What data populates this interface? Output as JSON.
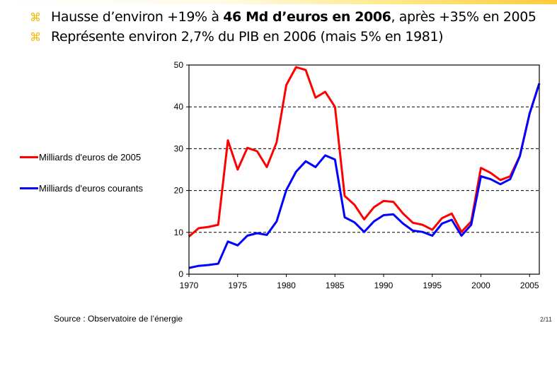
{
  "slide": {
    "bullets": [
      {
        "pre": "Hausse d’environ +19% à ",
        "bold": "46 Md d’euros en 2006",
        "post": ", après +35% en 2005"
      },
      {
        "pre": "Représente environ 2,7% du PIB en 2006 (mais 5% en 1981)",
        "bold": "",
        "post": ""
      }
    ],
    "bullet_icon": "command-key-icon",
    "bullet_symbol": "⌘",
    "source": "Source : Observatoire de l’énergie",
    "page": "2/11"
  },
  "chart_data": {
    "type": "line",
    "title": "",
    "xlabel": "",
    "ylabel": "",
    "xlim": [
      1970,
      2006
    ],
    "ylim": [
      0,
      50
    ],
    "xticks": [
      1970,
      1975,
      1980,
      1985,
      1990,
      1995,
      2000,
      2005
    ],
    "yticks": [
      0,
      10,
      20,
      30,
      40,
      50
    ],
    "grid": "horizontal dashed",
    "legend_position": "left",
    "x": [
      1970,
      1971,
      1972,
      1973,
      1974,
      1975,
      1976,
      1977,
      1978,
      1979,
      1980,
      1981,
      1982,
      1983,
      1984,
      1985,
      1986,
      1987,
      1988,
      1989,
      1990,
      1991,
      1992,
      1993,
      1994,
      1995,
      1996,
      1997,
      1998,
      1999,
      2000,
      2001,
      2002,
      2003,
      2004,
      2005,
      2006
    ],
    "series": [
      {
        "name": "Milliards d'euros de 2005",
        "color": "#ff0000",
        "values": [
          9.0,
          11.0,
          11.3,
          11.8,
          32.0,
          25.0,
          30.2,
          29.4,
          25.6,
          31.5,
          45.2,
          49.5,
          48.8,
          42.2,
          43.6,
          40.0,
          18.7,
          16.6,
          13.1,
          16.0,
          17.5,
          17.3,
          14.5,
          12.3,
          11.8,
          10.6,
          13.4,
          14.5,
          10.1,
          12.6,
          25.4,
          24.2,
          22.5,
          23.4,
          28.3,
          38.4,
          45.6
        ]
      },
      {
        "name": "Milliards d'euros courants",
        "color": "#0000ff",
        "values": [
          1.5,
          2.0,
          2.2,
          2.5,
          7.8,
          6.9,
          9.2,
          9.8,
          9.4,
          12.6,
          20.1,
          24.5,
          27.0,
          25.6,
          28.4,
          27.4,
          13.6,
          12.4,
          10.1,
          12.6,
          14.1,
          14.3,
          12.1,
          10.4,
          10.1,
          9.2,
          12.1,
          13.0,
          9.2,
          11.8,
          23.4,
          22.7,
          21.5,
          22.7,
          28.2,
          38.4,
          45.6
        ]
      }
    ]
  }
}
